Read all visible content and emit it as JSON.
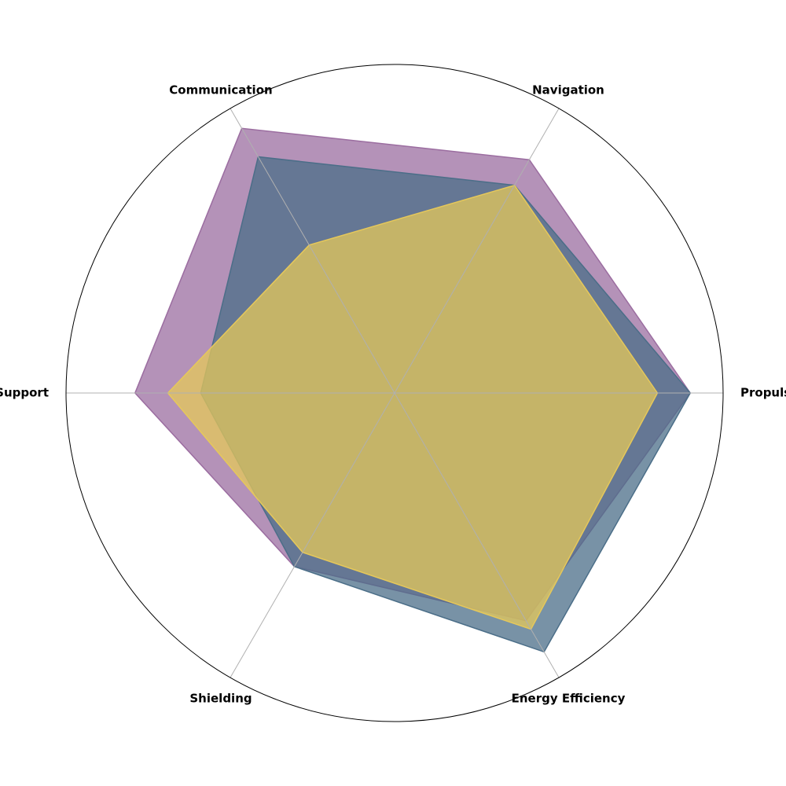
{
  "chart_data": {
    "type": "radar",
    "categories": [
      "Propulsion",
      "Navigation",
      "Communication",
      "Life Support",
      "Shielding",
      "Energy Efficiency"
    ],
    "rmax": 100,
    "grid": true,
    "legend": "none",
    "series": [
      {
        "values": [
          90,
          82,
          93,
          79,
          61,
          80
        ],
        "color": "#9b6da0"
      },
      {
        "values": [
          90,
          73,
          83,
          59,
          61,
          91
        ],
        "color": "#4b6e88"
      },
      {
        "values": [
          80,
          73,
          52,
          69,
          56,
          83
        ],
        "color": "#e6c85a"
      }
    ],
    "colors": {
      "outer_circle": "#000000",
      "spokes": "#b0b0b0"
    }
  }
}
